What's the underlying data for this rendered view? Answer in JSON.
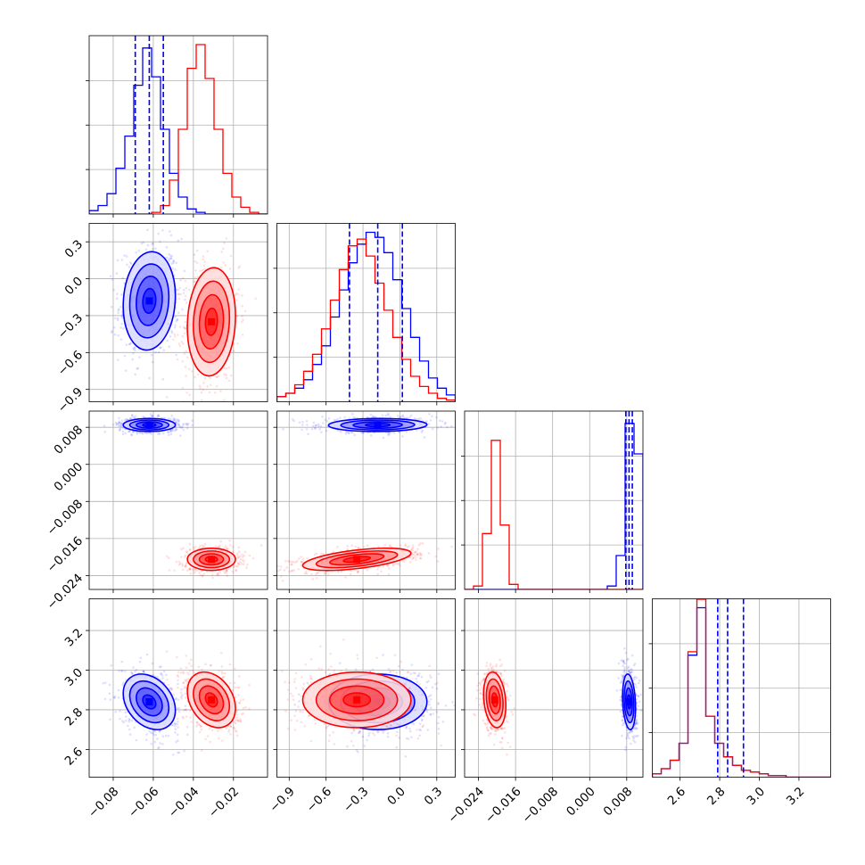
{
  "chart_data": {
    "type": "scatter",
    "title": "",
    "variables": [
      {
        "key": "v1",
        "range": [
          -0.092,
          -0.003
        ],
        "ticks": [
          -0.08,
          -0.06,
          -0.04,
          -0.02
        ],
        "tick_labels": [
          "−0.08",
          "−0.06",
          "−0.04",
          "−0.02"
        ],
        "median_blue": -0.062,
        "q16_blue": -0.069,
        "q84_blue": -0.055
      },
      {
        "key": "v2",
        "range": [
          -1.0,
          0.45
        ],
        "ticks": [
          -0.9,
          -0.6,
          -0.3,
          0.0,
          0.3
        ],
        "tick_labels": [
          "−0.9",
          "−0.6",
          "−0.3",
          "0.0",
          "0.3"
        ],
        "median_blue": -0.18,
        "q16_blue": -0.41,
        "q84_blue": 0.02
      },
      {
        "key": "v3",
        "range": [
          -0.027,
          0.0115
        ],
        "ticks": [
          -0.024,
          -0.016,
          -0.008,
          0.0,
          0.008
        ],
        "tick_labels": [
          "−0.024",
          "−0.016",
          "−0.008",
          "0.000",
          "0.008"
        ],
        "median_blue": 0.0085,
        "q16_blue": 0.0078,
        "q84_blue": 0.0092
      },
      {
        "key": "v4",
        "range": [
          2.46,
          3.36
        ],
        "ticks": [
          2.6,
          2.8,
          3.0,
          3.2
        ],
        "tick_labels": [
          "2.6",
          "2.8",
          "3.0",
          "3.2"
        ],
        "median_blue": 2.84,
        "q16_blue": 2.79,
        "q84_blue": 2.92
      }
    ],
    "series": [
      {
        "name": "",
        "color": "#0000ff",
        "means": [
          -0.062,
          -0.18,
          0.0085,
          2.84
        ],
        "sds": [
          0.0065,
          0.2,
          0.0007,
          0.07
        ],
        "hist": [
          [
            0.02,
            0.05,
            0.12,
            0.27,
            0.46,
            0.76,
            0.98,
            0.81,
            0.5,
            0.24,
            0.1,
            0.03,
            0.01,
            0.0,
            0.0,
            0.0,
            0.0,
            0.0,
            0.0,
            0.0
          ],
          [
            0.03,
            0.05,
            0.08,
            0.13,
            0.22,
            0.33,
            0.5,
            0.66,
            0.82,
            0.93,
            1.0,
            0.97,
            0.88,
            0.72,
            0.55,
            0.38,
            0.24,
            0.14,
            0.08,
            0.04
          ],
          [
            0.0,
            0.0,
            0.0,
            0.0,
            0.0,
            0.0,
            0.0,
            0.0,
            0.0,
            0.0,
            0.0,
            0.0,
            0.0,
            0.0,
            0.0,
            0.0,
            0.02,
            0.2,
            0.98,
            0.8
          ],
          [
            0.02,
            0.05,
            0.1,
            0.2,
            0.72,
            1.0,
            0.36,
            0.2,
            0.12,
            0.07,
            0.04,
            0.03,
            0.02,
            0.01,
            0.01,
            0.0,
            0.0,
            0.0,
            0.0,
            0.0
          ]
        ]
      },
      {
        "name": "",
        "color": "#ff0000",
        "means": [
          -0.031,
          -0.35,
          -0.0205,
          2.85
        ],
        "sds": [
          0.006,
          0.22,
          0.0012,
          0.07
        ],
        "hist": [
          [
            0.0,
            0.0,
            0.0,
            0.0,
            0.0,
            0.0,
            0.0,
            0.01,
            0.05,
            0.2,
            0.5,
            0.86,
            1.0,
            0.8,
            0.5,
            0.24,
            0.1,
            0.04,
            0.01,
            0.0
          ],
          [
            0.03,
            0.05,
            0.1,
            0.18,
            0.28,
            0.43,
            0.6,
            0.78,
            0.92,
            0.96,
            0.86,
            0.7,
            0.54,
            0.38,
            0.25,
            0.15,
            0.09,
            0.05,
            0.02,
            0.01
          ],
          [
            0.0,
            0.02,
            0.33,
            0.88,
            0.38,
            0.03,
            0.0,
            0.0,
            0.0,
            0.0,
            0.0,
            0.0,
            0.0,
            0.0,
            0.0,
            0.0,
            0.0,
            0.0,
            0.0,
            0.0
          ],
          [
            0.02,
            0.05,
            0.1,
            0.2,
            0.74,
            1.05,
            0.36,
            0.2,
            0.12,
            0.07,
            0.04,
            0.03,
            0.02,
            0.01,
            0.01,
            0.0,
            0.0,
            0.0,
            0.0,
            0.0
          ]
        ]
      }
    ],
    "pair_params": [
      {
        "i": 1,
        "j": 0,
        "blue_corr": 0.1,
        "red_corr": 0.1,
        "blue_sd": [
          0.0065,
          0.2
        ],
        "red_sd": [
          0.006,
          0.22
        ]
      },
      {
        "i": 2,
        "j": 0,
        "blue_corr": 0.0,
        "red_corr": 0.0,
        "blue_sd": [
          0.0065,
          0.0007
        ],
        "red_sd": [
          0.006,
          0.0012
        ]
      },
      {
        "i": 2,
        "j": 1,
        "blue_corr": 0.05,
        "red_corr": 0.55,
        "blue_sd": [
          0.2,
          0.0007
        ],
        "red_sd": [
          0.22,
          0.0012
        ]
      },
      {
        "i": 3,
        "j": 0,
        "blue_corr": -0.3,
        "red_corr": -0.3,
        "blue_sd": [
          0.0065,
          0.07
        ],
        "red_sd": [
          0.006,
          0.07
        ]
      },
      {
        "i": 3,
        "j": 1,
        "blue_corr": 0.0,
        "red_corr": 0.0,
        "blue_sd": [
          0.2,
          0.07
        ],
        "red_sd": [
          0.22,
          0.07
        ]
      },
      {
        "i": 3,
        "j": 2,
        "blue_corr": -0.2,
        "red_corr": -0.2,
        "blue_sd": [
          0.0007,
          0.07
        ],
        "red_sd": [
          0.0012,
          0.07
        ]
      }
    ],
    "contour_levels_sigma": [
      0.5,
      1.0,
      1.5,
      2.0
    ],
    "grid": true,
    "legend": "none"
  }
}
